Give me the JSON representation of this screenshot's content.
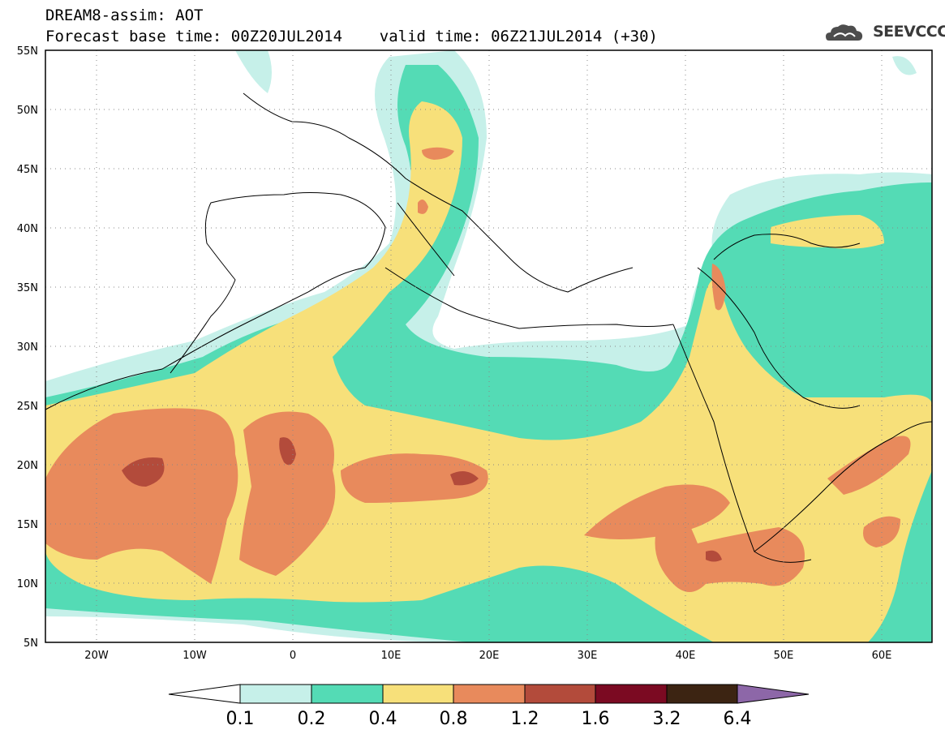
{
  "header": {
    "title_line1": "DREAM8-assim: AOT",
    "title_line2": "Forecast base time: 00Z20JUL2014    valid time: 06Z21JUL2014 (+30)",
    "logo_text": "SEEVCCC",
    "logo_icon": "cloud-icon"
  },
  "map": {
    "lat_labels": [
      "55N",
      "50N",
      "45N",
      "40N",
      "35N",
      "30N",
      "25N",
      "20N",
      "15N",
      "10N",
      "5N"
    ],
    "lon_labels": [
      "20W",
      "10W",
      "0",
      "10E",
      "20E",
      "30E",
      "40E",
      "50E",
      "60E"
    ],
    "lat_range": [
      5,
      55
    ],
    "lon_range": [
      -25,
      65
    ],
    "grid": "dotted"
  },
  "colorbar": {
    "labels": [
      "0.1",
      "0.2",
      "0.4",
      "0.8",
      "1.2",
      "1.6",
      "3.2",
      "6.4"
    ],
    "colors": [
      "#ffffff",
      "#c6f0e9",
      "#54dbb5",
      "#f7e07a",
      "#e88a5c",
      "#b34b3b",
      "#7b0a22",
      "#3c2412",
      "#8d67a8"
    ]
  }
}
